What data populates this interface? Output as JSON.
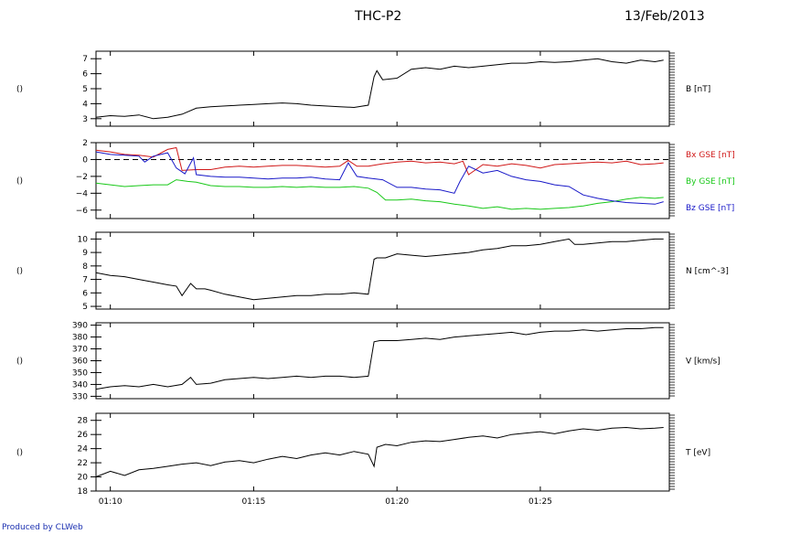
{
  "header": {
    "title": "THC-P2",
    "date": "13/Feb/2013"
  },
  "footer": "Produced by CLWeb",
  "colors": {
    "black": "#000000",
    "bx": "#d01818",
    "by": "#18c818",
    "bz": "#1818c8"
  },
  "chart_data": [
    {
      "type": "line",
      "left_label": "()",
      "ylim": [
        2.5,
        7.5
      ],
      "yticks": [
        "3",
        "4",
        "5",
        "6",
        "7"
      ],
      "series": [
        {
          "name": "B [nT]",
          "color": "#000000",
          "x": [
            9.5,
            10,
            10.5,
            11,
            11.5,
            12,
            12.5,
            13,
            13.5,
            14,
            14.5,
            15,
            15.5,
            16,
            16.5,
            17,
            17.5,
            18,
            18.5,
            19,
            19.2,
            19.3,
            19.5,
            20,
            20.5,
            21,
            21.5,
            22,
            22.5,
            23,
            23.5,
            24,
            24.5,
            25,
            25.5,
            26,
            26.5,
            27,
            27.5,
            28,
            28.5,
            29,
            29.3
          ],
          "y": [
            3.1,
            3.2,
            3.15,
            3.25,
            3.0,
            3.1,
            3.3,
            3.7,
            3.8,
            3.85,
            3.9,
            3.95,
            4.0,
            4.05,
            4.0,
            3.9,
            3.85,
            3.8,
            3.75,
            3.9,
            5.8,
            6.2,
            5.6,
            5.7,
            6.3,
            6.4,
            6.3,
            6.5,
            6.4,
            6.5,
            6.6,
            6.7,
            6.7,
            6.8,
            6.75,
            6.8,
            6.9,
            7.0,
            6.8,
            6.7,
            6.9,
            6.8,
            6.9
          ]
        }
      ]
    },
    {
      "type": "line",
      "left_label": "()",
      "ylim": [
        -7,
        2
      ],
      "yticks": [
        "2",
        "0",
        "−2",
        "−4",
        "−6"
      ],
      "zero_line": true,
      "series": [
        {
          "name": "Bx GSE [nT]",
          "color": "#d01818",
          "x": [
            9.5,
            10,
            10.5,
            11,
            11.5,
            12,
            12.3,
            12.5,
            13,
            13.5,
            14,
            14.5,
            15,
            15.5,
            16,
            16.5,
            17,
            17.5,
            18,
            18.3,
            18.6,
            19,
            19.5,
            20,
            20.5,
            21,
            21.5,
            22,
            22.3,
            22.5,
            23,
            23.5,
            24,
            24.5,
            25,
            25.5,
            26,
            26.5,
            27,
            27.5,
            28,
            28.5,
            29,
            29.3
          ],
          "y": [
            1.1,
            0.9,
            0.6,
            0.5,
            0.3,
            1.2,
            1.4,
            -1.3,
            -1.2,
            -1.2,
            -0.9,
            -0.8,
            -0.9,
            -0.8,
            -0.7,
            -0.7,
            -0.8,
            -0.9,
            -0.8,
            -0.1,
            -0.8,
            -0.8,
            -0.5,
            -0.3,
            -0.2,
            -0.4,
            -0.3,
            -0.5,
            -0.2,
            -1.8,
            -0.6,
            -0.8,
            -0.5,
            -0.7,
            -1.0,
            -0.6,
            -0.5,
            -0.4,
            -0.3,
            -0.4,
            -0.2,
            -0.6,
            -0.5,
            -0.4
          ]
        },
        {
          "name": "By GSE [nT]",
          "color": "#18c818",
          "x": [
            9.5,
            10,
            10.5,
            11,
            11.5,
            12,
            12.3,
            12.7,
            13,
            13.5,
            14,
            14.5,
            15,
            15.5,
            16,
            16.5,
            17,
            17.5,
            18,
            18.5,
            19,
            19.3,
            19.6,
            20,
            20.5,
            21,
            21.5,
            22,
            22.5,
            23,
            23.5,
            24,
            24.5,
            25,
            25.5,
            26,
            26.5,
            27,
            27.5,
            28,
            28.5,
            29,
            29.3
          ],
          "y": [
            -2.8,
            -3.0,
            -3.2,
            -3.1,
            -3.0,
            -3.0,
            -2.4,
            -2.6,
            -2.7,
            -3.1,
            -3.2,
            -3.2,
            -3.3,
            -3.3,
            -3.2,
            -3.3,
            -3.2,
            -3.3,
            -3.3,
            -3.2,
            -3.4,
            -3.9,
            -4.8,
            -4.8,
            -4.7,
            -4.9,
            -5.0,
            -5.3,
            -5.5,
            -5.8,
            -5.6,
            -5.9,
            -5.8,
            -5.9,
            -5.8,
            -5.7,
            -5.5,
            -5.2,
            -5.0,
            -4.7,
            -4.5,
            -4.6,
            -4.5
          ]
        },
        {
          "name": "Bz GSE [nT]",
          "color": "#1818c8",
          "x": [
            9.5,
            10,
            10.5,
            11,
            11.2,
            11.5,
            12,
            12.3,
            12.6,
            12.9,
            13,
            13.5,
            14,
            14.5,
            15,
            15.5,
            16,
            16.5,
            17,
            17.5,
            18,
            18.3,
            18.6,
            19,
            19.5,
            20,
            20.5,
            21,
            21.5,
            22,
            22.2,
            22.5,
            23,
            23.5,
            24,
            24.5,
            25,
            25.5,
            26,
            26.5,
            27,
            27.5,
            28,
            28.5,
            29,
            29.3
          ],
          "y": [
            0.9,
            0.6,
            0.5,
            0.4,
            -0.3,
            0.4,
            0.8,
            -1.0,
            -1.7,
            0.2,
            -1.8,
            -2.0,
            -2.1,
            -2.1,
            -2.2,
            -2.3,
            -2.2,
            -2.2,
            -2.1,
            -2.3,
            -2.4,
            -0.4,
            -2.0,
            -2.2,
            -2.4,
            -3.3,
            -3.3,
            -3.5,
            -3.6,
            -4.0,
            -2.6,
            -0.8,
            -1.6,
            -1.3,
            -2.0,
            -2.4,
            -2.6,
            -3.0,
            -3.2,
            -4.2,
            -4.6,
            -4.9,
            -5.1,
            -5.2,
            -5.3,
            -5.0
          ]
        }
      ]
    },
    {
      "type": "line",
      "left_label": "()",
      "ylim": [
        4.8,
        10.5
      ],
      "yticks": [
        "5",
        "6",
        "7",
        "8",
        "9",
        "10"
      ],
      "series": [
        {
          "name": "N [cm^-3]",
          "color": "#000000",
          "x": [
            9.5,
            10,
            10.5,
            11,
            11.5,
            12,
            12.3,
            12.5,
            12.8,
            13,
            13.3,
            13.5,
            14,
            14.5,
            15,
            15.5,
            16,
            16.5,
            17,
            17.5,
            18,
            18.5,
            19,
            19.2,
            19.3,
            19.6,
            20,
            20.5,
            21,
            21.5,
            22,
            22.5,
            23,
            23.5,
            24,
            24.5,
            25,
            25.5,
            26,
            26.2,
            26.5,
            27,
            27.5,
            28,
            28.5,
            29,
            29.3
          ],
          "y": [
            7.5,
            7.3,
            7.2,
            7.0,
            6.8,
            6.6,
            6.5,
            5.8,
            6.7,
            6.3,
            6.3,
            6.2,
            5.9,
            5.7,
            5.5,
            5.6,
            5.7,
            5.8,
            5.8,
            5.9,
            5.9,
            6.0,
            5.9,
            8.5,
            8.6,
            8.6,
            8.9,
            8.8,
            8.7,
            8.8,
            8.9,
            9.0,
            9.2,
            9.3,
            9.5,
            9.5,
            9.6,
            9.8,
            10.0,
            9.6,
            9.6,
            9.7,
            9.8,
            9.8,
            9.9,
            10.0,
            10.0
          ]
        }
      ]
    },
    {
      "type": "line",
      "left_label": "()",
      "ylim": [
        328,
        392
      ],
      "yticks": [
        "330",
        "340",
        "350",
        "360",
        "370",
        "380",
        "390"
      ],
      "series": [
        {
          "name": "V [km/s]",
          "color": "#000000",
          "x": [
            9.5,
            10,
            10.5,
            11,
            11.5,
            12,
            12.5,
            12.8,
            13,
            13.5,
            14,
            14.5,
            15,
            15.5,
            16,
            16.5,
            17,
            17.5,
            18,
            18.5,
            19,
            19.2,
            19.4,
            20,
            20.5,
            21,
            21.5,
            22,
            22.5,
            23,
            23.5,
            24,
            24.5,
            25,
            25.5,
            26,
            26.5,
            27,
            27.5,
            28,
            28.5,
            29,
            29.3
          ],
          "y": [
            336,
            338,
            339,
            338,
            340,
            338,
            340,
            346,
            340,
            341,
            344,
            345,
            346,
            345,
            346,
            347,
            346,
            347,
            347,
            346,
            347,
            376,
            377,
            377,
            378,
            379,
            378,
            380,
            381,
            382,
            383,
            384,
            382,
            384,
            385,
            385,
            386,
            385,
            386,
            387,
            387,
            388,
            388
          ]
        }
      ]
    },
    {
      "type": "line",
      "left_label": "()",
      "ylim": [
        18,
        29
      ],
      "yticks": [
        "18",
        "20",
        "22",
        "24",
        "26",
        "28"
      ],
      "series": [
        {
          "name": "T [eV]",
          "color": "#000000",
          "x": [
            9.5,
            10,
            10.5,
            11,
            11.5,
            12,
            12.5,
            13,
            13.5,
            14,
            14.5,
            15,
            15.5,
            16,
            16.5,
            17,
            17.5,
            18,
            18.5,
            19,
            19.2,
            19.3,
            19.6,
            20,
            20.5,
            21,
            21.5,
            22,
            22.5,
            23,
            23.5,
            24,
            24.5,
            25,
            25.5,
            26,
            26.5,
            27,
            27.5,
            28,
            28.5,
            29,
            29.3
          ],
          "y": [
            20.0,
            20.8,
            20.2,
            21.0,
            21.2,
            21.5,
            21.8,
            22.0,
            21.6,
            22.1,
            22.3,
            22.0,
            22.5,
            22.9,
            22.6,
            23.1,
            23.4,
            23.1,
            23.6,
            23.2,
            21.5,
            24.2,
            24.6,
            24.4,
            24.9,
            25.1,
            25.0,
            25.3,
            25.6,
            25.8,
            25.5,
            26.0,
            26.2,
            26.4,
            26.1,
            26.5,
            26.8,
            26.6,
            26.9,
            27.0,
            26.8,
            26.9,
            27.0
          ]
        }
      ]
    }
  ],
  "xaxis": {
    "range": [
      9.5,
      29.5
    ],
    "ticks": [
      {
        "value": 10,
        "label": "01:10"
      },
      {
        "value": 15,
        "label": "01:15"
      },
      {
        "value": 20,
        "label": "01:20"
      },
      {
        "value": 25,
        "label": "01:25"
      }
    ]
  }
}
